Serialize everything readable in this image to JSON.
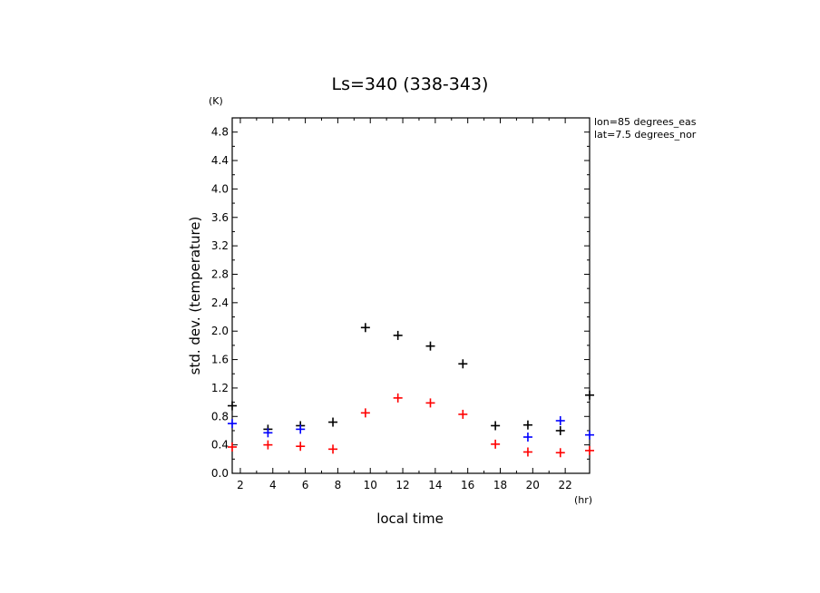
{
  "chart_data": {
    "type": "scatter",
    "title": "Ls=340 (338-343)",
    "xlabel": "local time",
    "ylabel": "std. dev. (temperature)",
    "x_unit": "(hr)",
    "y_unit": "(K)",
    "xlim": [
      1.5,
      23.5
    ],
    "ylim": [
      0,
      5.0
    ],
    "x_ticks": [
      "2",
      "4",
      "6",
      "8",
      "10",
      "12",
      "14",
      "16",
      "18",
      "20",
      "22"
    ],
    "y_ticks": [
      "0.0",
      "0.4",
      "0.8",
      "1.2",
      "1.6",
      "2.0",
      "2.4",
      "2.8",
      "3.2",
      "3.6",
      "4.0",
      "4.4",
      "4.8"
    ],
    "annotations": [
      "lon=85 degrees_eas",
      "lat=7.5 degrees_nor"
    ],
    "grid": false,
    "series": [
      {
        "color": "#000000",
        "points": [
          [
            1.5,
            0.95
          ],
          [
            3.7,
            0.62
          ],
          [
            5.7,
            0.67
          ],
          [
            7.7,
            0.72
          ],
          [
            9.7,
            2.05
          ],
          [
            11.7,
            1.94
          ],
          [
            13.7,
            1.79
          ],
          [
            15.7,
            1.54
          ],
          [
            17.7,
            0.67
          ],
          [
            19.7,
            0.68
          ],
          [
            21.7,
            0.6
          ],
          [
            23.5,
            1.1
          ]
        ]
      },
      {
        "color": "#0000ff",
        "points": [
          [
            1.5,
            0.7
          ],
          [
            3.7,
            0.57
          ],
          [
            5.7,
            0.62
          ],
          [
            19.7,
            0.51
          ],
          [
            21.7,
            0.74
          ],
          [
            23.5,
            0.54
          ]
        ]
      },
      {
        "color": "#ff0000",
        "points": [
          [
            1.5,
            0.37
          ],
          [
            3.7,
            0.4
          ],
          [
            5.7,
            0.38
          ],
          [
            7.7,
            0.34
          ],
          [
            9.7,
            0.85
          ],
          [
            11.7,
            1.06
          ],
          [
            13.7,
            0.99
          ],
          [
            15.7,
            0.83
          ],
          [
            17.7,
            0.41
          ],
          [
            19.7,
            0.3
          ],
          [
            21.7,
            0.29
          ],
          [
            23.5,
            0.32
          ]
        ]
      }
    ]
  }
}
